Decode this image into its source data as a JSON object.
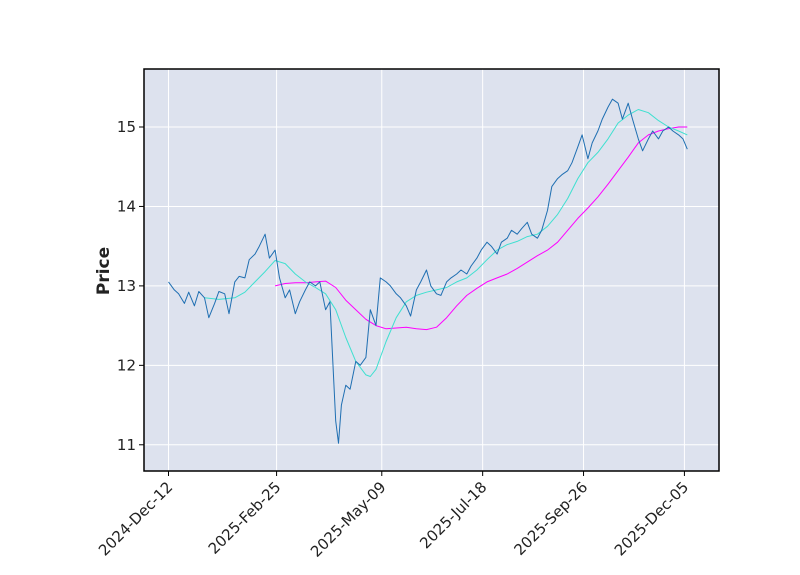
{
  "chart_data": {
    "type": "line",
    "title": "",
    "xlabel": "",
    "ylabel": "Price",
    "ylim": [
      10.67,
      15.73
    ],
    "xlim": [
      "2024-11-25",
      "2025-12-29"
    ],
    "grid": true,
    "background": "#dde2ee",
    "colors": {
      "price": "#1f6fb2",
      "ma_short": "#3fe0d0",
      "ma_long": "#ff00ff"
    },
    "x_ticks": [
      "2024-Dec-12",
      "2025-Feb-25",
      "2025-May-09",
      "2025-Jul-18",
      "2025-Sep-26",
      "2025-Dec-05"
    ],
    "y_ticks": [
      11,
      12,
      13,
      14,
      15
    ],
    "series": [
      {
        "key": "price",
        "points": [
          [
            "2024-12-12",
            13.05
          ],
          [
            "2024-12-16",
            12.95
          ],
          [
            "2024-12-19",
            12.9
          ],
          [
            "2024-12-23",
            12.78
          ],
          [
            "2024-12-26",
            12.92
          ],
          [
            "2024-12-30",
            12.75
          ],
          [
            "2025-01-02",
            12.93
          ],
          [
            "2025-01-06",
            12.85
          ],
          [
            "2025-01-09",
            12.6
          ],
          [
            "2025-01-13",
            12.78
          ],
          [
            "2025-01-16",
            12.93
          ],
          [
            "2025-01-20",
            12.9
          ],
          [
            "2025-01-23",
            12.65
          ],
          [
            "2025-01-27",
            13.05
          ],
          [
            "2025-01-30",
            13.12
          ],
          [
            "2025-02-03",
            13.1
          ],
          [
            "2025-02-06",
            13.33
          ],
          [
            "2025-02-10",
            13.4
          ],
          [
            "2025-02-13",
            13.5
          ],
          [
            "2025-02-17",
            13.65
          ],
          [
            "2025-02-20",
            13.35
          ],
          [
            "2025-02-24",
            13.45
          ],
          [
            "2025-02-27",
            13.1
          ],
          [
            "2025-03-03",
            12.85
          ],
          [
            "2025-03-06",
            12.95
          ],
          [
            "2025-03-10",
            12.65
          ],
          [
            "2025-03-13",
            12.8
          ],
          [
            "2025-03-17",
            12.95
          ],
          [
            "2025-03-20",
            13.05
          ],
          [
            "2025-03-24",
            13.0
          ],
          [
            "2025-03-27",
            13.05
          ],
          [
            "2025-03-31",
            12.7
          ],
          [
            "2025-04-03",
            12.8
          ],
          [
            "2025-04-07",
            11.3
          ],
          [
            "2025-04-09",
            11.02
          ],
          [
            "2025-04-11",
            11.5
          ],
          [
            "2025-04-14",
            11.75
          ],
          [
            "2025-04-17",
            11.7
          ],
          [
            "2025-04-21",
            12.05
          ],
          [
            "2025-04-24",
            12.0
          ],
          [
            "2025-04-28",
            12.1
          ],
          [
            "2025-05-01",
            12.7
          ],
          [
            "2025-05-05",
            12.5
          ],
          [
            "2025-05-08",
            13.1
          ],
          [
            "2025-05-12",
            13.05
          ],
          [
            "2025-05-15",
            13.0
          ],
          [
            "2025-05-19",
            12.9
          ],
          [
            "2025-05-22",
            12.85
          ],
          [
            "2025-05-26",
            12.75
          ],
          [
            "2025-05-29",
            12.62
          ],
          [
            "2025-06-02",
            12.95
          ],
          [
            "2025-06-05",
            13.05
          ],
          [
            "2025-06-09",
            13.2
          ],
          [
            "2025-06-12",
            13.0
          ],
          [
            "2025-06-16",
            12.9
          ],
          [
            "2025-06-19",
            12.88
          ],
          [
            "2025-06-23",
            13.05
          ],
          [
            "2025-06-26",
            13.1
          ],
          [
            "2025-06-30",
            13.15
          ],
          [
            "2025-07-03",
            13.2
          ],
          [
            "2025-07-07",
            13.15
          ],
          [
            "2025-07-10",
            13.25
          ],
          [
            "2025-07-14",
            13.35
          ],
          [
            "2025-07-17",
            13.45
          ],
          [
            "2025-07-21",
            13.55
          ],
          [
            "2025-07-24",
            13.5
          ],
          [
            "2025-07-28",
            13.4
          ],
          [
            "2025-07-31",
            13.55
          ],
          [
            "2025-08-04",
            13.6
          ],
          [
            "2025-08-07",
            13.7
          ],
          [
            "2025-08-11",
            13.65
          ],
          [
            "2025-08-14",
            13.72
          ],
          [
            "2025-08-18",
            13.8
          ],
          [
            "2025-08-21",
            13.65
          ],
          [
            "2025-08-25",
            13.6
          ],
          [
            "2025-08-28",
            13.7
          ],
          [
            "2025-09-01",
            13.95
          ],
          [
            "2025-09-04",
            14.25
          ],
          [
            "2025-09-08",
            14.35
          ],
          [
            "2025-09-11",
            14.4
          ],
          [
            "2025-09-15",
            14.45
          ],
          [
            "2025-09-18",
            14.55
          ],
          [
            "2025-09-22",
            14.75
          ],
          [
            "2025-09-25",
            14.9
          ],
          [
            "2025-09-29",
            14.6
          ],
          [
            "2025-10-02",
            14.8
          ],
          [
            "2025-10-06",
            14.95
          ],
          [
            "2025-10-09",
            15.1
          ],
          [
            "2025-10-13",
            15.25
          ],
          [
            "2025-10-16",
            15.35
          ],
          [
            "2025-10-20",
            15.3
          ],
          [
            "2025-10-23",
            15.1
          ],
          [
            "2025-10-27",
            15.3
          ],
          [
            "2025-10-30",
            15.1
          ],
          [
            "2025-11-03",
            14.85
          ],
          [
            "2025-11-06",
            14.7
          ],
          [
            "2025-11-10",
            14.85
          ],
          [
            "2025-11-13",
            14.95
          ],
          [
            "2025-11-17",
            14.85
          ],
          [
            "2025-11-20",
            14.95
          ],
          [
            "2025-11-24",
            15.0
          ],
          [
            "2025-11-27",
            14.95
          ],
          [
            "2025-12-01",
            14.9
          ],
          [
            "2025-12-04",
            14.85
          ],
          [
            "2025-12-07",
            14.72
          ]
        ]
      },
      {
        "key": "ma_short",
        "points": [
          [
            "2025-01-06",
            12.85
          ],
          [
            "2025-01-16",
            12.83
          ],
          [
            "2025-01-27",
            12.85
          ],
          [
            "2025-02-03",
            12.92
          ],
          [
            "2025-02-10",
            13.05
          ],
          [
            "2025-02-17",
            13.18
          ],
          [
            "2025-02-24",
            13.32
          ],
          [
            "2025-03-03",
            13.28
          ],
          [
            "2025-03-10",
            13.15
          ],
          [
            "2025-03-17",
            13.05
          ],
          [
            "2025-03-24",
            12.98
          ],
          [
            "2025-03-31",
            12.9
          ],
          [
            "2025-04-07",
            12.7
          ],
          [
            "2025-04-14",
            12.35
          ],
          [
            "2025-04-21",
            12.05
          ],
          [
            "2025-04-28",
            11.88
          ],
          [
            "2025-05-01",
            11.86
          ],
          [
            "2025-05-05",
            11.95
          ],
          [
            "2025-05-12",
            12.3
          ],
          [
            "2025-05-19",
            12.6
          ],
          [
            "2025-05-26",
            12.8
          ],
          [
            "2025-06-02",
            12.88
          ],
          [
            "2025-06-09",
            12.92
          ],
          [
            "2025-06-16",
            12.95
          ],
          [
            "2025-06-23",
            12.98
          ],
          [
            "2025-06-30",
            13.05
          ],
          [
            "2025-07-07",
            13.1
          ],
          [
            "2025-07-14",
            13.2
          ],
          [
            "2025-07-21",
            13.33
          ],
          [
            "2025-07-28",
            13.45
          ],
          [
            "2025-08-04",
            13.52
          ],
          [
            "2025-08-11",
            13.56
          ],
          [
            "2025-08-18",
            13.62
          ],
          [
            "2025-08-25",
            13.65
          ],
          [
            "2025-09-01",
            13.75
          ],
          [
            "2025-09-08",
            13.9
          ],
          [
            "2025-09-15",
            14.1
          ],
          [
            "2025-09-22",
            14.35
          ],
          [
            "2025-09-29",
            14.55
          ],
          [
            "2025-10-06",
            14.68
          ],
          [
            "2025-10-13",
            14.85
          ],
          [
            "2025-10-20",
            15.05
          ],
          [
            "2025-10-27",
            15.15
          ],
          [
            "2025-11-03",
            15.22
          ],
          [
            "2025-11-10",
            15.18
          ],
          [
            "2025-11-17",
            15.08
          ],
          [
            "2025-11-24",
            15.0
          ],
          [
            "2025-12-01",
            14.95
          ],
          [
            "2025-12-07",
            14.9
          ]
        ]
      },
      {
        "key": "ma_long",
        "points": [
          [
            "2025-02-24",
            13.0
          ],
          [
            "2025-03-03",
            13.03
          ],
          [
            "2025-03-10",
            13.04
          ],
          [
            "2025-03-17",
            13.04
          ],
          [
            "2025-03-24",
            13.05
          ],
          [
            "2025-03-31",
            13.06
          ],
          [
            "2025-04-07",
            12.98
          ],
          [
            "2025-04-14",
            12.82
          ],
          [
            "2025-04-21",
            12.7
          ],
          [
            "2025-04-28",
            12.58
          ],
          [
            "2025-05-05",
            12.5
          ],
          [
            "2025-05-12",
            12.46
          ],
          [
            "2025-05-19",
            12.47
          ],
          [
            "2025-05-26",
            12.48
          ],
          [
            "2025-06-02",
            12.46
          ],
          [
            "2025-06-09",
            12.45
          ],
          [
            "2025-06-16",
            12.48
          ],
          [
            "2025-06-23",
            12.6
          ],
          [
            "2025-06-30",
            12.75
          ],
          [
            "2025-07-07",
            12.88
          ],
          [
            "2025-07-14",
            12.97
          ],
          [
            "2025-07-21",
            13.05
          ],
          [
            "2025-07-28",
            13.1
          ],
          [
            "2025-08-04",
            13.15
          ],
          [
            "2025-08-11",
            13.22
          ],
          [
            "2025-08-18",
            13.3
          ],
          [
            "2025-08-25",
            13.38
          ],
          [
            "2025-09-01",
            13.45
          ],
          [
            "2025-09-08",
            13.55
          ],
          [
            "2025-09-15",
            13.7
          ],
          [
            "2025-09-22",
            13.85
          ],
          [
            "2025-09-29",
            13.98
          ],
          [
            "2025-10-06",
            14.12
          ],
          [
            "2025-10-13",
            14.28
          ],
          [
            "2025-10-20",
            14.45
          ],
          [
            "2025-10-27",
            14.62
          ],
          [
            "2025-11-03",
            14.8
          ],
          [
            "2025-11-10",
            14.9
          ],
          [
            "2025-11-17",
            14.95
          ],
          [
            "2025-11-24",
            14.98
          ],
          [
            "2025-12-01",
            15.0
          ],
          [
            "2025-12-07",
            15.0
          ]
        ]
      }
    ]
  }
}
